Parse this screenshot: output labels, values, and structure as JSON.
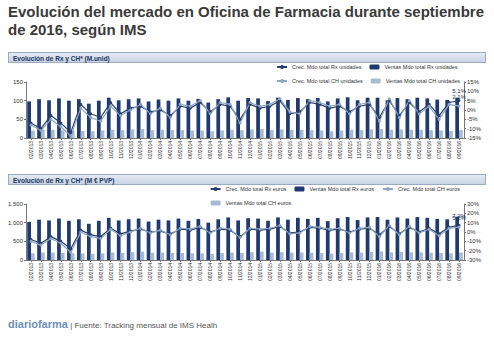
{
  "header": {
    "title": "Evolución del mercado en Oficina de Farmacia durante septiembre de 2016, según IMS"
  },
  "footer": {
    "brand": "diariofarma",
    "source": "| Fuente: Tracking mensual de IMS Healh"
  },
  "chart_data": [
    {
      "type": "bar",
      "title": "Evolución de Rx y CH* (M.unid)",
      "categories": [
        "02/2013",
        "03/2013",
        "04/2013",
        "05/2013",
        "06/2013",
        "07/2013",
        "08/2013",
        "09/2013",
        "10/2013",
        "11/2013",
        "12/2013",
        "01/2014",
        "02/2014",
        "03/2014",
        "04/2014",
        "05/2014",
        "06/2014",
        "07/2014",
        "08/2014",
        "09/2014",
        "10/2014",
        "11/2014",
        "12/2014",
        "01/2015",
        "02/2015",
        "03/2015",
        "04/2015",
        "05/2015",
        "06/2015",
        "07/2015",
        "08/2015",
        "09/2015",
        "10/2015",
        "11/2015",
        "12/2015",
        "01/2016",
        "02/2016",
        "03/2016",
        "04/2016",
        "05/2016",
        "06/2016",
        "07/2016",
        "08/2016",
        "09/2016"
      ],
      "series": [
        {
          "name": "Crec. Mdo total Rx unidades",
          "type": "line",
          "axis": "y2",
          "color": "#2b3f6b",
          "marker": "circle",
          "line_style": "solid",
          "values": [
            -7,
            -10,
            -3,
            -7,
            -12,
            3,
            -2,
            -4,
            4,
            -2,
            1,
            2,
            -1,
            0,
            -3,
            2,
            1,
            4,
            -1,
            3,
            2,
            -5,
            3,
            1,
            2,
            5,
            -2,
            -1,
            4,
            3,
            1,
            2,
            -1,
            2,
            3,
            -4,
            5,
            -3,
            4,
            -1,
            3,
            -3,
            4,
            5.1
          ],
          "value_labels": [
            null,
            null,
            null,
            null,
            null,
            null,
            null,
            null,
            null,
            null,
            null,
            null,
            null,
            null,
            null,
            null,
            null,
            null,
            null,
            null,
            null,
            null,
            null,
            null,
            null,
            null,
            null,
            null,
            null,
            null,
            null,
            null,
            null,
            null,
            null,
            null,
            null,
            null,
            null,
            null,
            null,
            null,
            null,
            "5,1%"
          ]
        },
        {
          "name": "Ventas Mdo total Rx unidades",
          "type": "bar",
          "color": "#1f3a6e",
          "values": [
            98,
            104,
            101,
            106,
            100,
            104,
            92,
            100,
            108,
            101,
            104,
            106,
            98,
            103,
            100,
            106,
            100,
            105,
            95,
            104,
            109,
            100,
            107,
            106,
            99,
            108,
            102,
            107,
            104,
            107,
            98,
            106,
            109,
            101,
            108,
            108,
            101,
            107,
            104,
            108,
            106,
            103,
            102,
            108
          ]
        },
        {
          "name": "Crec. Mdo total CH unidades",
          "type": "line",
          "axis": "y2",
          "color": "#8ea6c4",
          "marker": "circle",
          "line_style": "solid",
          "values": [
            -8,
            -11,
            -5,
            -9,
            -14,
            1,
            -4,
            -6,
            2,
            -3,
            0,
            3,
            -2,
            1,
            -4,
            3,
            2,
            5,
            -2,
            4,
            3,
            -7,
            4,
            2,
            3,
            6,
            -1,
            -2,
            5,
            4,
            2,
            3,
            -2,
            3,
            4,
            -6,
            6,
            -4,
            5,
            -2,
            2,
            -5,
            3,
            2.1
          ],
          "value_labels": [
            null,
            null,
            null,
            null,
            null,
            null,
            null,
            null,
            null,
            null,
            null,
            null,
            null,
            null,
            null,
            null,
            null,
            null,
            null,
            null,
            null,
            null,
            null,
            null,
            null,
            null,
            null,
            null,
            null,
            null,
            null,
            null,
            null,
            null,
            null,
            null,
            null,
            null,
            null,
            null,
            null,
            null,
            null,
            "2,1%"
          ]
        },
        {
          "name": "Ventas Mdo total CH unidades",
          "type": "bar",
          "color": "#a9bbd2",
          "values": [
            20,
            22,
            22,
            21,
            20,
            19,
            18,
            20,
            22,
            21,
            23,
            24,
            21,
            22,
            21,
            21,
            20,
            20,
            18,
            20,
            22,
            21,
            23,
            24,
            21,
            23,
            22,
            22,
            21,
            20,
            18,
            20,
            22,
            21,
            23,
            24,
            22,
            23,
            22,
            22,
            21,
            20,
            19,
            21
          ]
        }
      ],
      "ylim": [
        0,
        150
      ],
      "yticks": [
        0,
        50,
        100,
        150
      ],
      "y2lim": [
        -15,
        15
      ],
      "y2ticks": [
        {
          "value": -15,
          "label": "-15%"
        },
        {
          "value": -10,
          "label": "-10%"
        },
        {
          "value": -5,
          "label": "-5%"
        },
        {
          "value": 0,
          "label": "0%"
        },
        {
          "value": 5,
          "label": "5%"
        },
        {
          "value": 10,
          "label": "10%"
        },
        {
          "value": 15,
          "label": "15%"
        }
      ],
      "grid": false,
      "legend": "top-right",
      "data_labels": true
    },
    {
      "type": "bar",
      "title": "Evolución de Rx y CH* (M € PVP)",
      "categories": [
        "02/2013",
        "03/2013",
        "04/2013",
        "05/2013",
        "06/2013",
        "07/2013",
        "08/2013",
        "09/2013",
        "10/2013",
        "11/2013",
        "12/2013",
        "01/2014",
        "02/2014",
        "03/2014",
        "04/2014",
        "05/2014",
        "06/2014",
        "07/2014",
        "08/2014",
        "09/2014",
        "10/2014",
        "11/2014",
        "12/2014",
        "01/2015",
        "02/2015",
        "03/2015",
        "04/2015",
        "05/2015",
        "06/2015",
        "07/2015",
        "08/2015",
        "09/2015",
        "10/2015",
        "11/2015",
        "12/2015",
        "01/2016",
        "02/2016",
        "03/2016",
        "04/2016",
        "05/2016",
        "06/2016",
        "07/2016",
        "08/2016",
        "09/2016"
      ],
      "series": [
        {
          "name": "Crec. Mdo total Rx euros",
          "type": "line",
          "axis": "y2",
          "color": "#2b3f6b",
          "marker": "circle",
          "line_style": "solid",
          "values": [
            -8,
            -12,
            -5,
            -10,
            -18,
            2,
            -3,
            -5,
            4,
            -2,
            1,
            3,
            0,
            1,
            -2,
            3,
            2,
            5,
            0,
            3,
            2,
            -5,
            3,
            2,
            3,
            6,
            -1,
            0,
            5,
            4,
            2,
            3,
            0,
            3,
            4,
            -3,
            6,
            -2,
            5,
            0,
            4,
            -2,
            5,
            7.2
          ],
          "value_labels": [
            null,
            null,
            null,
            null,
            null,
            null,
            null,
            null,
            null,
            null,
            null,
            null,
            null,
            null,
            null,
            null,
            null,
            null,
            null,
            null,
            null,
            null,
            null,
            null,
            null,
            null,
            null,
            null,
            null,
            null,
            null,
            null,
            null,
            null,
            null,
            null,
            null,
            null,
            null,
            null,
            null,
            null,
            null,
            "7,2%"
          ]
        },
        {
          "name": "Ventas Mdo total Rx euros",
          "type": "bar",
          "color": "#1f3a6e",
          "values": [
            1020,
            1080,
            1060,
            1110,
            1050,
            1090,
            970,
            1050,
            1130,
            1060,
            1090,
            1110,
            1030,
            1080,
            1060,
            1110,
            1050,
            1100,
            1000,
            1090,
            1140,
            1060,
            1120,
            1110,
            1050,
            1140,
            1080,
            1130,
            1100,
            1130,
            1040,
            1120,
            1150,
            1070,
            1140,
            1150,
            1080,
            1140,
            1110,
            1150,
            1130,
            1100,
            1090,
            1160
          ]
        },
        {
          "name": "Crec. Mdo total CH euros",
          "type": "line",
          "axis": "y2",
          "color": "#8ea6c4",
          "marker": "circle",
          "line_style": "solid",
          "values": [
            -10,
            -14,
            -7,
            -12,
            -22,
            0,
            -5,
            -7,
            3,
            -4,
            0,
            4,
            -1,
            2,
            -3,
            4,
            3,
            6,
            -1,
            4,
            3,
            -6,
            4,
            3,
            4,
            7,
            -2,
            -1,
            6,
            5,
            3,
            4,
            -1,
            4,
            5,
            -5,
            7,
            -3,
            6,
            -1,
            3,
            -4,
            4,
            5.2
          ],
          "value_labels": [
            null,
            null,
            null,
            null,
            null,
            null,
            null,
            null,
            null,
            null,
            null,
            null,
            null,
            null,
            null,
            null,
            null,
            null,
            null,
            null,
            null,
            null,
            null,
            null,
            null,
            null,
            null,
            null,
            null,
            null,
            null,
            null,
            null,
            null,
            null,
            null,
            null,
            null,
            null,
            null,
            null,
            null,
            null,
            "5,2%"
          ]
        },
        {
          "name": "Ventas Mdo total CH euros",
          "type": "bar",
          "color": "#a9bbd2",
          "values": [
            180,
            200,
            200,
            190,
            180,
            175,
            165,
            180,
            200,
            190,
            210,
            225,
            195,
            200,
            190,
            190,
            180,
            180,
            165,
            185,
            200,
            190,
            210,
            225,
            195,
            210,
            200,
            200,
            190,
            185,
            170,
            185,
            205,
            195,
            215,
            230,
            205,
            215,
            205,
            205,
            195,
            190,
            180,
            200
          ]
        }
      ],
      "ylim": [
        0,
        1500
      ],
      "yticks": [
        0,
        500,
        {
          "value": 1000,
          "label": "1.000"
        },
        {
          "value": 1500,
          "label": "1.500"
        }
      ],
      "y2lim": [
        -30,
        30
      ],
      "y2ticks": [
        {
          "value": -30,
          "label": "-30%"
        },
        {
          "value": -20,
          "label": "-20%"
        },
        {
          "value": -10,
          "label": "-10%"
        },
        {
          "value": 0,
          "label": "0%"
        },
        {
          "value": 10,
          "label": "10%"
        },
        {
          "value": 20,
          "label": "20%"
        },
        {
          "value": 30,
          "label": "30%"
        }
      ],
      "grid": false,
      "legend": "top-right",
      "data_labels": true
    }
  ]
}
